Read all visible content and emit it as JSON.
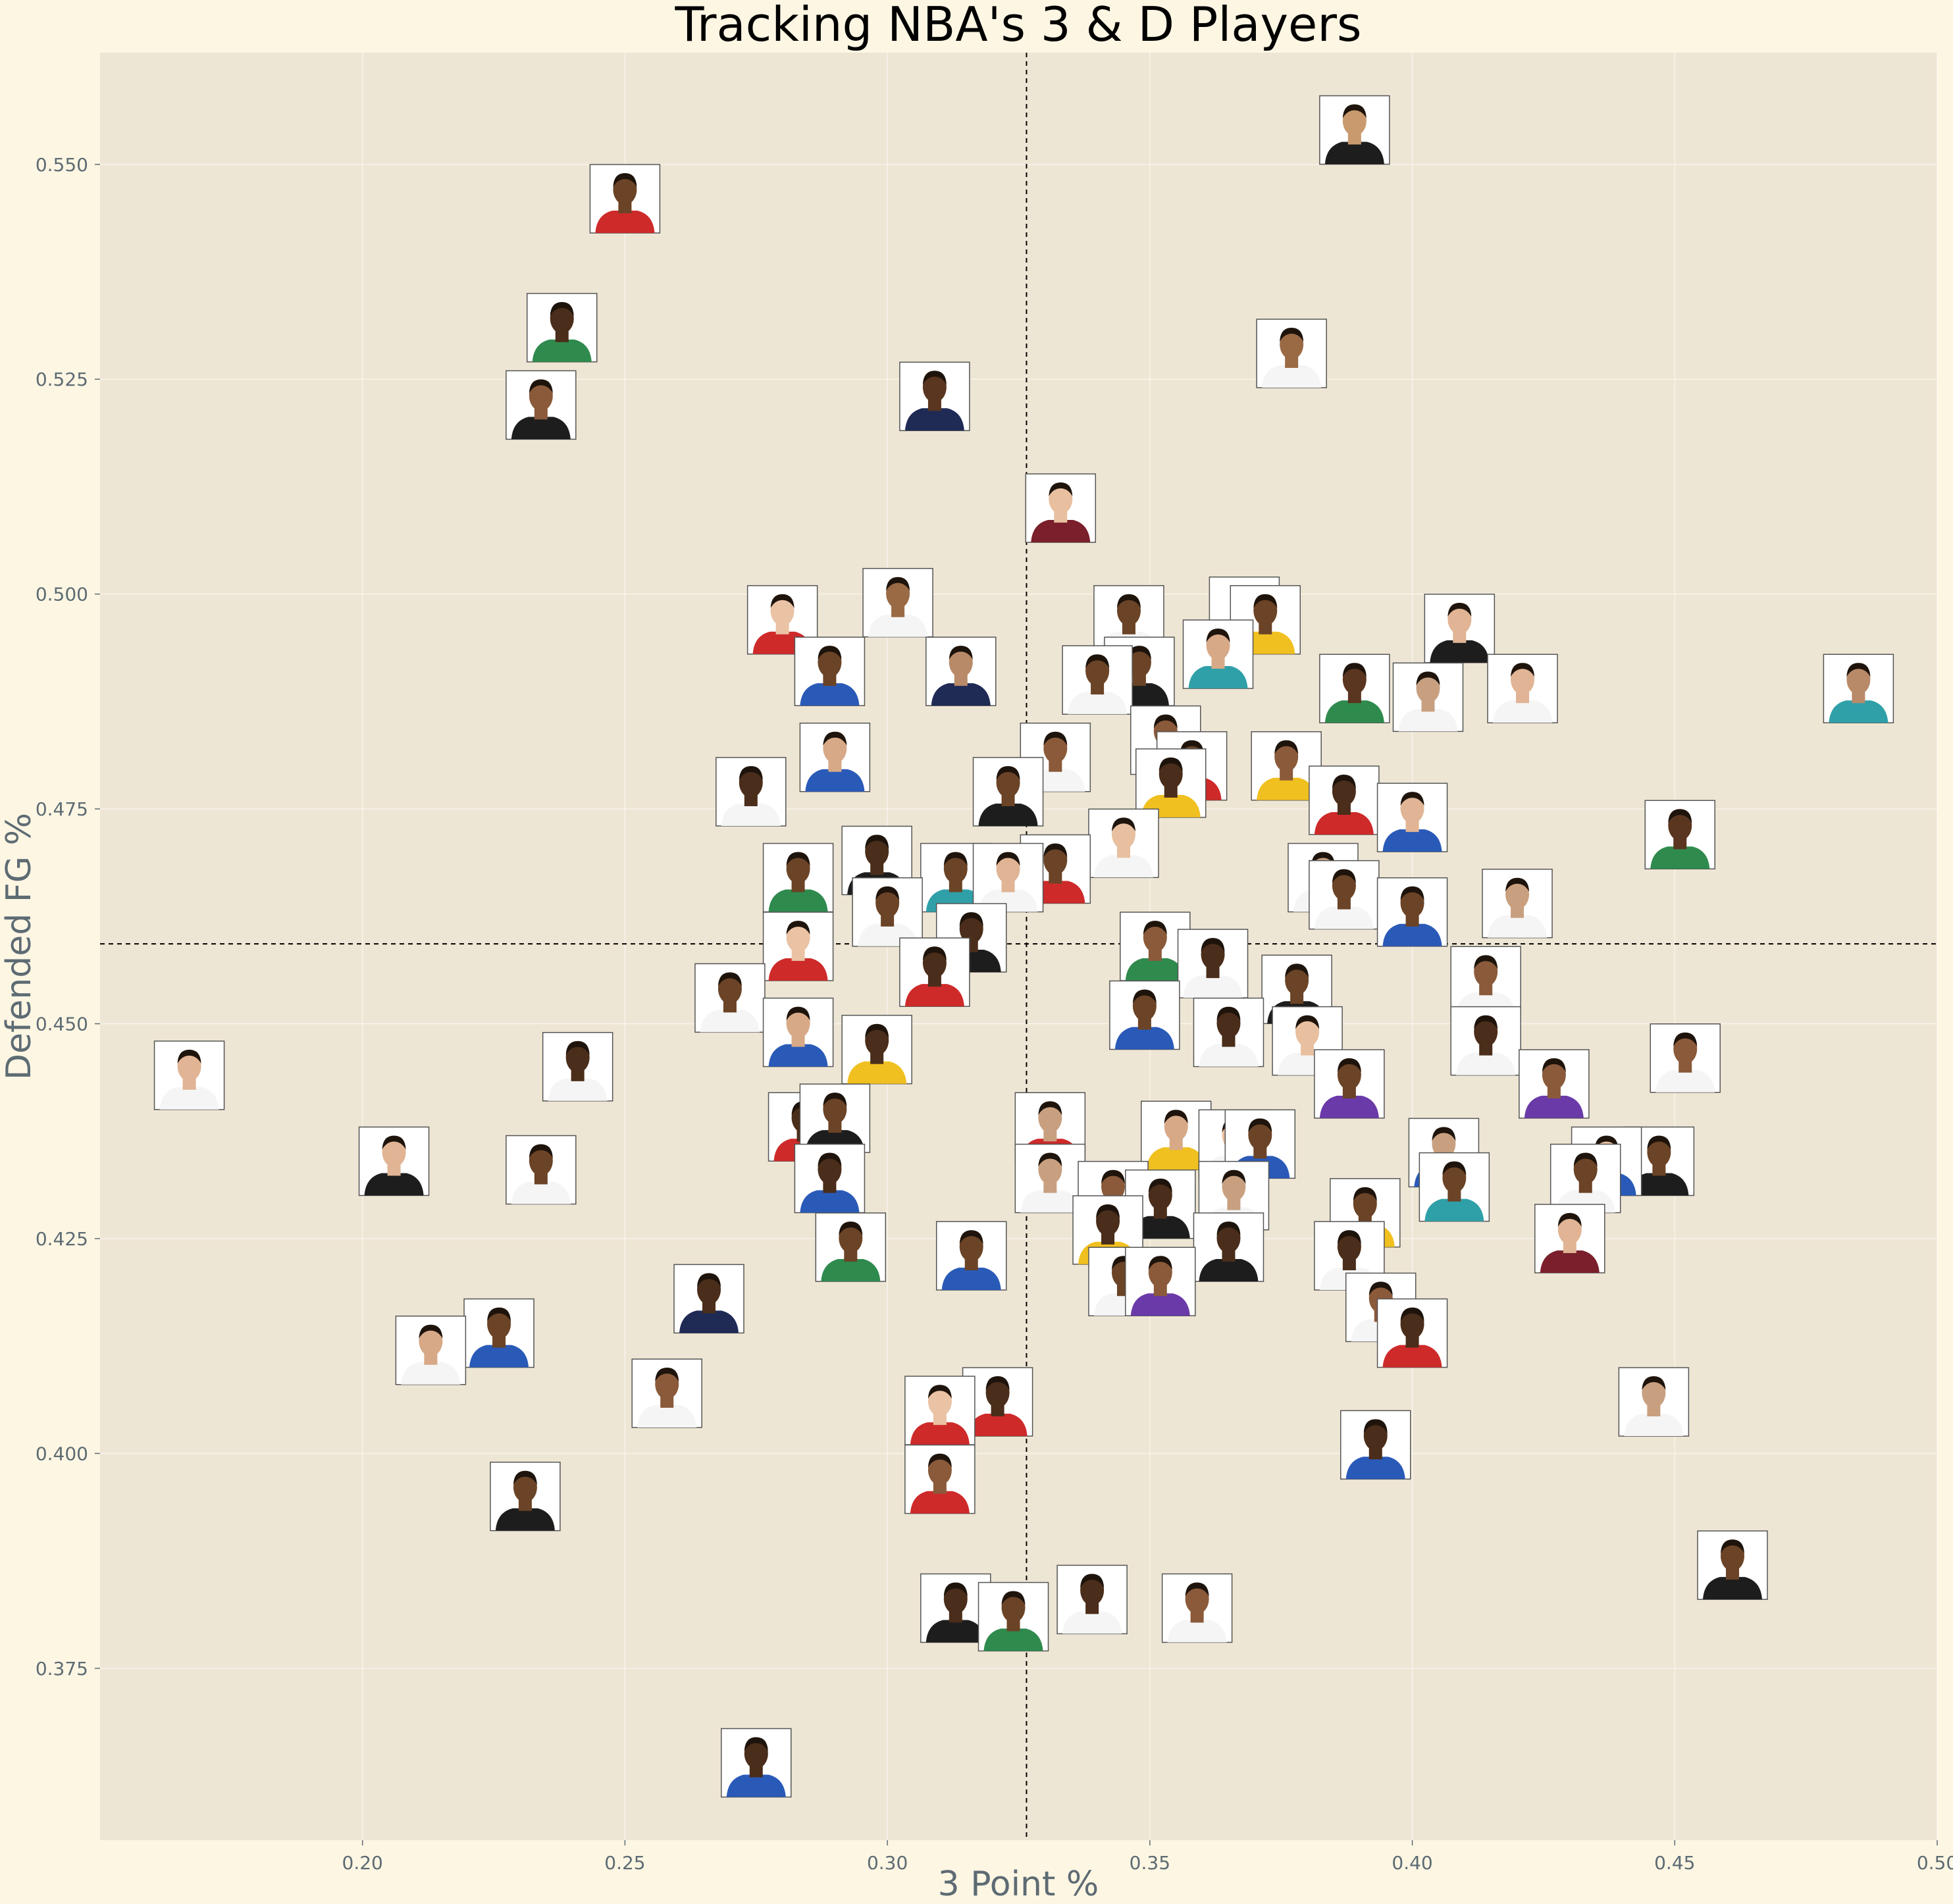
{
  "chart_data": {
    "type": "scatter",
    "title": "Tracking NBA's 3 & D Players",
    "xlabel": "3 Point %",
    "ylabel": "Defended FG %",
    "xlim": [
      0.15,
      0.5
    ],
    "ylim": [
      0.355,
      0.563
    ],
    "xticks": [
      {
        "value": 0.2,
        "label": "0.20"
      },
      {
        "value": 0.25,
        "label": "0.25"
      },
      {
        "value": 0.3,
        "label": "0.30"
      },
      {
        "value": 0.35,
        "label": "0.35"
      },
      {
        "value": 0.4,
        "label": "0.40"
      },
      {
        "value": 0.45,
        "label": "0.45"
      },
      {
        "value": 0.5,
        "label": "0.50"
      }
    ],
    "yticks": [
      {
        "value": 0.375,
        "label": "0.375"
      },
      {
        "value": 0.4,
        "label": "0.400"
      },
      {
        "value": 0.425,
        "label": "0.425"
      },
      {
        "value": 0.45,
        "label": "0.450"
      },
      {
        "value": 0.475,
        "label": "0.475"
      },
      {
        "value": 0.5,
        "label": "0.500"
      },
      {
        "value": 0.525,
        "label": "0.525"
      },
      {
        "value": 0.55,
        "label": "0.550"
      }
    ],
    "grid": true,
    "reference_lines": {
      "x_mean": 0.3265,
      "y_mean": 0.4593
    },
    "marker": "player headshot",
    "points": [
      {
        "x": 0.389,
        "y": 0.554,
        "jersey": "#1d1d1d",
        "skin": "#c89a6e"
      },
      {
        "x": 0.25,
        "y": 0.546,
        "jersey": "#ce2a2a",
        "skin": "#6b4326"
      },
      {
        "x": 0.238,
        "y": 0.531,
        "jersey": "#2f8a4e",
        "skin": "#4a2d1a"
      },
      {
        "x": 0.377,
        "y": 0.528,
        "jersey": "#f5f5f5",
        "skin": "#9a6a45"
      },
      {
        "x": 0.234,
        "y": 0.522,
        "jersey": "#1d1d1d",
        "skin": "#8a5a3a"
      },
      {
        "x": 0.309,
        "y": 0.523,
        "jersey": "#1f2a55",
        "skin": "#5a3520"
      },
      {
        "x": 0.333,
        "y": 0.51,
        "jersey": "#7a1f2b",
        "skin": "#e8c0a0"
      },
      {
        "x": 0.302,
        "y": 0.499,
        "jersey": "#f5f5f5",
        "skin": "#9a6a45"
      },
      {
        "x": 0.28,
        "y": 0.497,
        "jersey": "#ce2a2a",
        "skin": "#eac2a4"
      },
      {
        "x": 0.368,
        "y": 0.498,
        "jersey": "#ce2a2a",
        "skin": "#4a2d1a"
      },
      {
        "x": 0.372,
        "y": 0.497,
        "jersey": "#f0c020",
        "skin": "#6b4326"
      },
      {
        "x": 0.346,
        "y": 0.497,
        "jersey": "#f5f5f5",
        "skin": "#6b4326"
      },
      {
        "x": 0.409,
        "y": 0.496,
        "jersey": "#1d1d1d",
        "skin": "#e0b494"
      },
      {
        "x": 0.289,
        "y": 0.491,
        "jersey": "#2a5ab8",
        "skin": "#6b4326"
      },
      {
        "x": 0.348,
        "y": 0.491,
        "jersey": "#1d1d1d",
        "skin": "#6b4326"
      },
      {
        "x": 0.363,
        "y": 0.493,
        "jersey": "#30a0a8",
        "skin": "#d7a987"
      },
      {
        "x": 0.314,
        "y": 0.491,
        "jersey": "#1f2a55",
        "skin": "#b88a68"
      },
      {
        "x": 0.34,
        "y": 0.49,
        "jersey": "#f5f5f5",
        "skin": "#6b4326"
      },
      {
        "x": 0.389,
        "y": 0.489,
        "jersey": "#2f8a4e",
        "skin": "#5a3520"
      },
      {
        "x": 0.421,
        "y": 0.489,
        "jersey": "#f5f5f5",
        "skin": "#e0b494"
      },
      {
        "x": 0.403,
        "y": 0.488,
        "jersey": "#f5f5f5",
        "skin": "#c8a080"
      },
      {
        "x": 0.485,
        "y": 0.489,
        "jersey": "#30a0a8",
        "skin": "#b88a68"
      },
      {
        "x": 0.353,
        "y": 0.483,
        "jersey": "#1d1d1d",
        "skin": "#8a5a3a"
      },
      {
        "x": 0.332,
        "y": 0.481,
        "jersey": "#f5f5f5",
        "skin": "#8a5a3a"
      },
      {
        "x": 0.29,
        "y": 0.481,
        "jersey": "#2a5ab8",
        "skin": "#d7a987"
      },
      {
        "x": 0.358,
        "y": 0.48,
        "jersey": "#ce2a2a",
        "skin": "#6b4326"
      },
      {
        "x": 0.376,
        "y": 0.48,
        "jersey": "#f0c020",
        "skin": "#8a5a3a"
      },
      {
        "x": 0.274,
        "y": 0.477,
        "jersey": "#f5f5f5",
        "skin": "#4a2d1a"
      },
      {
        "x": 0.354,
        "y": 0.478,
        "jersey": "#f0c020",
        "skin": "#4a2d1a"
      },
      {
        "x": 0.323,
        "y": 0.477,
        "jersey": "#1d1d1d",
        "skin": "#6b4326"
      },
      {
        "x": 0.387,
        "y": 0.476,
        "jersey": "#ce2a2a",
        "skin": "#4a2d1a"
      },
      {
        "x": 0.4,
        "y": 0.474,
        "jersey": "#2a5ab8",
        "skin": "#e0b494"
      },
      {
        "x": 0.451,
        "y": 0.472,
        "jersey": "#2f8a4e",
        "skin": "#5a3520"
      },
      {
        "x": 0.345,
        "y": 0.471,
        "jersey": "#f5f5f5",
        "skin": "#e8c0a0"
      },
      {
        "x": 0.298,
        "y": 0.469,
        "jersey": "#1d1d1d",
        "skin": "#4a2d1a"
      },
      {
        "x": 0.332,
        "y": 0.468,
        "jersey": "#ce2a2a",
        "skin": "#6b4326"
      },
      {
        "x": 0.313,
        "y": 0.467,
        "jersey": "#30a0a8",
        "skin": "#6b4326"
      },
      {
        "x": 0.323,
        "y": 0.467,
        "jersey": "#f5f5f5",
        "skin": "#e0b494"
      },
      {
        "x": 0.283,
        "y": 0.467,
        "jersey": "#2f8a4e",
        "skin": "#6b4326"
      },
      {
        "x": 0.383,
        "y": 0.467,
        "jersey": "#f5f5f5",
        "skin": "#c8a080"
      },
      {
        "x": 0.387,
        "y": 0.465,
        "jersey": "#f5f5f5",
        "skin": "#6b4326"
      },
      {
        "x": 0.42,
        "y": 0.464,
        "jersey": "#f5f5f5",
        "skin": "#c8a080"
      },
      {
        "x": 0.4,
        "y": 0.463,
        "jersey": "#2a5ab8",
        "skin": "#6b4326"
      },
      {
        "x": 0.3,
        "y": 0.463,
        "jersey": "#f5f5f5",
        "skin": "#6b4326"
      },
      {
        "x": 0.316,
        "y": 0.46,
        "jersey": "#1d1d1d",
        "skin": "#4a2d1a"
      },
      {
        "x": 0.283,
        "y": 0.459,
        "jersey": "#ce2a2a",
        "skin": "#eac2a4"
      },
      {
        "x": 0.351,
        "y": 0.459,
        "jersey": "#2f8a4e",
        "skin": "#8a5a3a"
      },
      {
        "x": 0.362,
        "y": 0.457,
        "jersey": "#f5f5f5",
        "skin": "#4a2d1a"
      },
      {
        "x": 0.309,
        "y": 0.456,
        "jersey": "#ce2a2a",
        "skin": "#4a2d1a"
      },
      {
        "x": 0.414,
        "y": 0.455,
        "jersey": "#f5f5f5",
        "skin": "#8a5a3a"
      },
      {
        "x": 0.378,
        "y": 0.454,
        "jersey": "#1d1d1d",
        "skin": "#6b4326"
      },
      {
        "x": 0.27,
        "y": 0.453,
        "jersey": "#f5f5f5",
        "skin": "#6b4326"
      },
      {
        "x": 0.349,
        "y": 0.451,
        "jersey": "#2a5ab8",
        "skin": "#6b4326"
      },
      {
        "x": 0.283,
        "y": 0.449,
        "jersey": "#2a5ab8",
        "skin": "#d7a987"
      },
      {
        "x": 0.365,
        "y": 0.449,
        "jersey": "#f5f5f5",
        "skin": "#4a2d1a"
      },
      {
        "x": 0.38,
        "y": 0.448,
        "jersey": "#f5f5f5",
        "skin": "#e8c0a0"
      },
      {
        "x": 0.414,
        "y": 0.448,
        "jersey": "#f5f5f5",
        "skin": "#4a2d1a"
      },
      {
        "x": 0.298,
        "y": 0.447,
        "jersey": "#f0c020",
        "skin": "#4a2d1a"
      },
      {
        "x": 0.452,
        "y": 0.446,
        "jersey": "#f5f5f5",
        "skin": "#8a5a3a"
      },
      {
        "x": 0.167,
        "y": 0.444,
        "jersey": "#f5f5f5",
        "skin": "#e0b494"
      },
      {
        "x": 0.241,
        "y": 0.445,
        "jersey": "#f5f5f5",
        "skin": "#4a2d1a"
      },
      {
        "x": 0.388,
        "y": 0.443,
        "jersey": "#6a3aa8",
        "skin": "#6b4326"
      },
      {
        "x": 0.427,
        "y": 0.443,
        "jersey": "#6a3aa8",
        "skin": "#8a5a3a"
      },
      {
        "x": 0.284,
        "y": 0.438,
        "jersey": "#ce2a2a",
        "skin": "#4a2d1a"
      },
      {
        "x": 0.29,
        "y": 0.439,
        "jersey": "#1d1d1d",
        "skin": "#6b4326"
      },
      {
        "x": 0.331,
        "y": 0.438,
        "jersey": "#ce2a2a",
        "skin": "#c8a080"
      },
      {
        "x": 0.355,
        "y": 0.437,
        "jersey": "#f0c020",
        "skin": "#d7a987"
      },
      {
        "x": 0.366,
        "y": 0.436,
        "jersey": "#f5f5f5",
        "skin": "#eac2a4"
      },
      {
        "x": 0.371,
        "y": 0.436,
        "jersey": "#2a5ab8",
        "skin": "#6b4326"
      },
      {
        "x": 0.406,
        "y": 0.435,
        "jersey": "#2a5ab8",
        "skin": "#c8a080"
      },
      {
        "x": 0.206,
        "y": 0.434,
        "jersey": "#1d1d1d",
        "skin": "#e0b494"
      },
      {
        "x": 0.447,
        "y": 0.434,
        "jersey": "#1d1d1d",
        "skin": "#6b4326"
      },
      {
        "x": 0.437,
        "y": 0.434,
        "jersey": "#2a5ab8",
        "skin": "#e8c0a0"
      },
      {
        "x": 0.234,
        "y": 0.433,
        "jersey": "#f5f5f5",
        "skin": "#6b4326"
      },
      {
        "x": 0.289,
        "y": 0.432,
        "jersey": "#2a5ab8",
        "skin": "#4a2d1a"
      },
      {
        "x": 0.331,
        "y": 0.432,
        "jersey": "#f5f5f5",
        "skin": "#c8a080"
      },
      {
        "x": 0.433,
        "y": 0.432,
        "jersey": "#f5f5f5",
        "skin": "#6b4326"
      },
      {
        "x": 0.408,
        "y": 0.431,
        "jersey": "#30a0a8",
        "skin": "#6b4326"
      },
      {
        "x": 0.343,
        "y": 0.43,
        "jersey": "#6a3aa8",
        "skin": "#8a5a3a"
      },
      {
        "x": 0.366,
        "y": 0.43,
        "jersey": "#f5f5f5",
        "skin": "#c8a080"
      },
      {
        "x": 0.352,
        "y": 0.429,
        "jersey": "#1d1d1d",
        "skin": "#4a2d1a"
      },
      {
        "x": 0.391,
        "y": 0.428,
        "jersey": "#f0c020",
        "skin": "#6b4326"
      },
      {
        "x": 0.342,
        "y": 0.426,
        "jersey": "#f0c020",
        "skin": "#4a2d1a"
      },
      {
        "x": 0.43,
        "y": 0.425,
        "jersey": "#7a1f2b",
        "skin": "#e0b494"
      },
      {
        "x": 0.293,
        "y": 0.424,
        "jersey": "#2f8a4e",
        "skin": "#6b4326"
      },
      {
        "x": 0.365,
        "y": 0.424,
        "jersey": "#1d1d1d",
        "skin": "#4a2d1a"
      },
      {
        "x": 0.316,
        "y": 0.423,
        "jersey": "#2a5ab8",
        "skin": "#6b4326"
      },
      {
        "x": 0.388,
        "y": 0.423,
        "jersey": "#f5f5f5",
        "skin": "#4a2d1a"
      },
      {
        "x": 0.345,
        "y": 0.42,
        "jersey": "#f5f5f5",
        "skin": "#6b4326"
      },
      {
        "x": 0.352,
        "y": 0.42,
        "jersey": "#6a3aa8",
        "skin": "#8a5a3a"
      },
      {
        "x": 0.266,
        "y": 0.418,
        "jersey": "#1f2a55",
        "skin": "#4a2d1a"
      },
      {
        "x": 0.394,
        "y": 0.417,
        "jersey": "#f5f5f5",
        "skin": "#8a5a3a"
      },
      {
        "x": 0.226,
        "y": 0.414,
        "jersey": "#2a5ab8",
        "skin": "#6b4326"
      },
      {
        "x": 0.4,
        "y": 0.414,
        "jersey": "#ce2a2a",
        "skin": "#4a2d1a"
      },
      {
        "x": 0.213,
        "y": 0.412,
        "jersey": "#f5f5f5",
        "skin": "#d7a987"
      },
      {
        "x": 0.258,
        "y": 0.407,
        "jersey": "#f5f5f5",
        "skin": "#8a5a3a"
      },
      {
        "x": 0.321,
        "y": 0.406,
        "jersey": "#ce2a2a",
        "skin": "#4a2d1a"
      },
      {
        "x": 0.446,
        "y": 0.406,
        "jersey": "#f5f5f5",
        "skin": "#c8a080"
      },
      {
        "x": 0.31,
        "y": 0.405,
        "jersey": "#ce2a2a",
        "skin": "#eac2a4"
      },
      {
        "x": 0.393,
        "y": 0.401,
        "jersey": "#2a5ab8",
        "skin": "#4a2d1a"
      },
      {
        "x": 0.31,
        "y": 0.397,
        "jersey": "#ce2a2a",
        "skin": "#8a5a3a"
      },
      {
        "x": 0.231,
        "y": 0.395,
        "jersey": "#1d1d1d",
        "skin": "#6b4326"
      },
      {
        "x": 0.461,
        "y": 0.387,
        "jersey": "#1d1d1d",
        "skin": "#6b4326"
      },
      {
        "x": 0.339,
        "y": 0.383,
        "jersey": "#f5f5f5",
        "skin": "#4a2d1a"
      },
      {
        "x": 0.359,
        "y": 0.382,
        "jersey": "#f5f5f5",
        "skin": "#8a5a3a"
      },
      {
        "x": 0.313,
        "y": 0.382,
        "jersey": "#1d1d1d",
        "skin": "#4a2d1a"
      },
      {
        "x": 0.324,
        "y": 0.381,
        "jersey": "#2f8a4e",
        "skin": "#6b4326"
      },
      {
        "x": 0.275,
        "y": 0.364,
        "jersey": "#2a5ab8",
        "skin": "#4a2d1a"
      }
    ]
  }
}
